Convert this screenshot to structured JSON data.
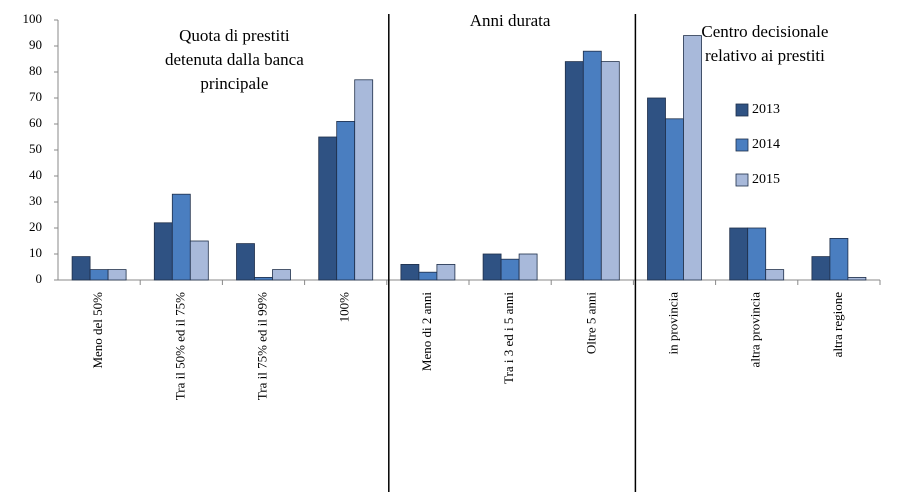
{
  "chart_data": {
    "type": "bar",
    "categories": [
      "Meno del 50%",
      "Tra il  50% ed il 75%",
      "Tra il  75% ed il 99%",
      "100%",
      "Meno di 2 anni",
      "Tra i 3 ed i 5 anni",
      "Oltre 5 anni",
      "in provincia",
      "altra provincia",
      "altra regione"
    ],
    "series": [
      {
        "name": "2013",
        "color": "#2f5283",
        "values": [
          9,
          22,
          14,
          55,
          6,
          10,
          84,
          70,
          20,
          9
        ]
      },
      {
        "name": "2014",
        "color": "#4a7ec0",
        "values": [
          4,
          33,
          1,
          61,
          3,
          8,
          88,
          62,
          20,
          16
        ]
      },
      {
        "name": "2015",
        "color": "#a8b9da",
        "values": [
          4,
          15,
          4,
          77,
          6,
          10,
          84,
          94,
          4,
          1
        ]
      }
    ],
    "annotations": [
      {
        "lines": [
          "Quota di prestiti",
          "detenuta dalla banca",
          "principale"
        ]
      },
      {
        "lines": [
          "Anni durata"
        ]
      },
      {
        "lines": [
          "Centro decisionale",
          "relativo ai prestiti"
        ]
      }
    ],
    "ylim": [
      0,
      100
    ],
    "yticks": [
      0,
      10,
      20,
      30,
      40,
      50,
      60,
      70,
      80,
      90,
      100
    ],
    "grid": false
  }
}
